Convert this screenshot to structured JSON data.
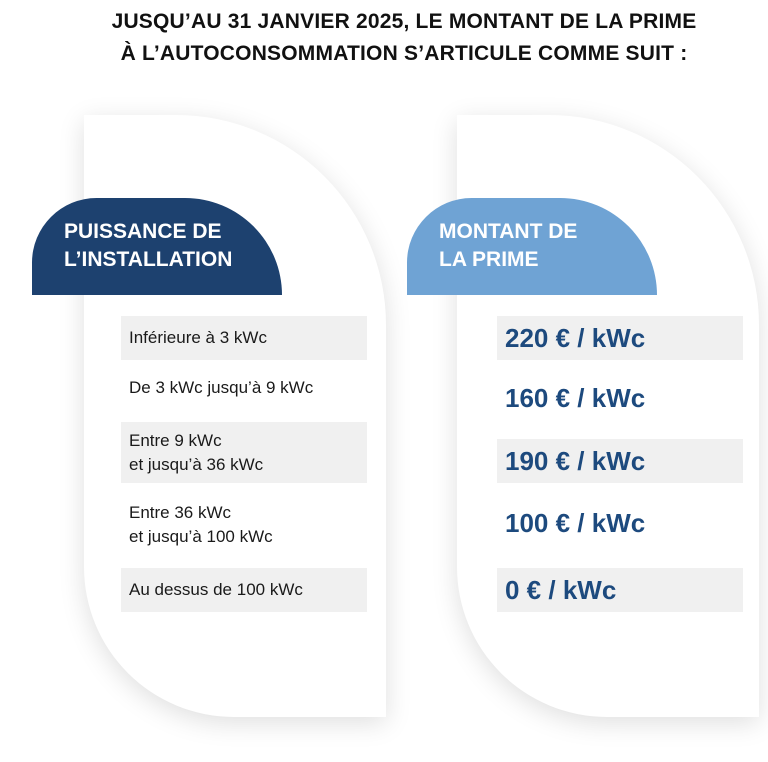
{
  "title": {
    "line1": "JUSQU’AU 31 JANVIER 2025, LE MONTANT DE LA PRIME",
    "line2": "À L’AUTOCONSOMMATION S’ARTICULE COMME SUIT :"
  },
  "colors": {
    "dark_tab": "#1d416f",
    "light_tab": "#6fa3d4",
    "amount_text": "#1d4a7e",
    "row_shade": "#f0f0f0"
  },
  "power_column": {
    "header_line1": "PUISSANCE DE",
    "header_line2": "L’INSTALLATION",
    "rows": [
      {
        "line1": "Inférieure à 3 kWc",
        "line2": ""
      },
      {
        "line1": "De 3 kWc jusqu’à 9 kWc",
        "line2": ""
      },
      {
        "line1": "Entre 9 kWc",
        "line2": "et jusqu’à 36 kWc"
      },
      {
        "line1": "Entre 36 kWc",
        "line2": "et jusqu’à 100 kWc"
      },
      {
        "line1": "Au dessus de 100 kWc",
        "line2": ""
      }
    ]
  },
  "amount_column": {
    "header_line1": "MONTANT DE",
    "header_line2": "LA PRIME",
    "rows": [
      "220 € / kWc",
      "160 € / kWc",
      "190 € / kWc",
      "100 € / kWc",
      "0 € / kWc"
    ]
  }
}
